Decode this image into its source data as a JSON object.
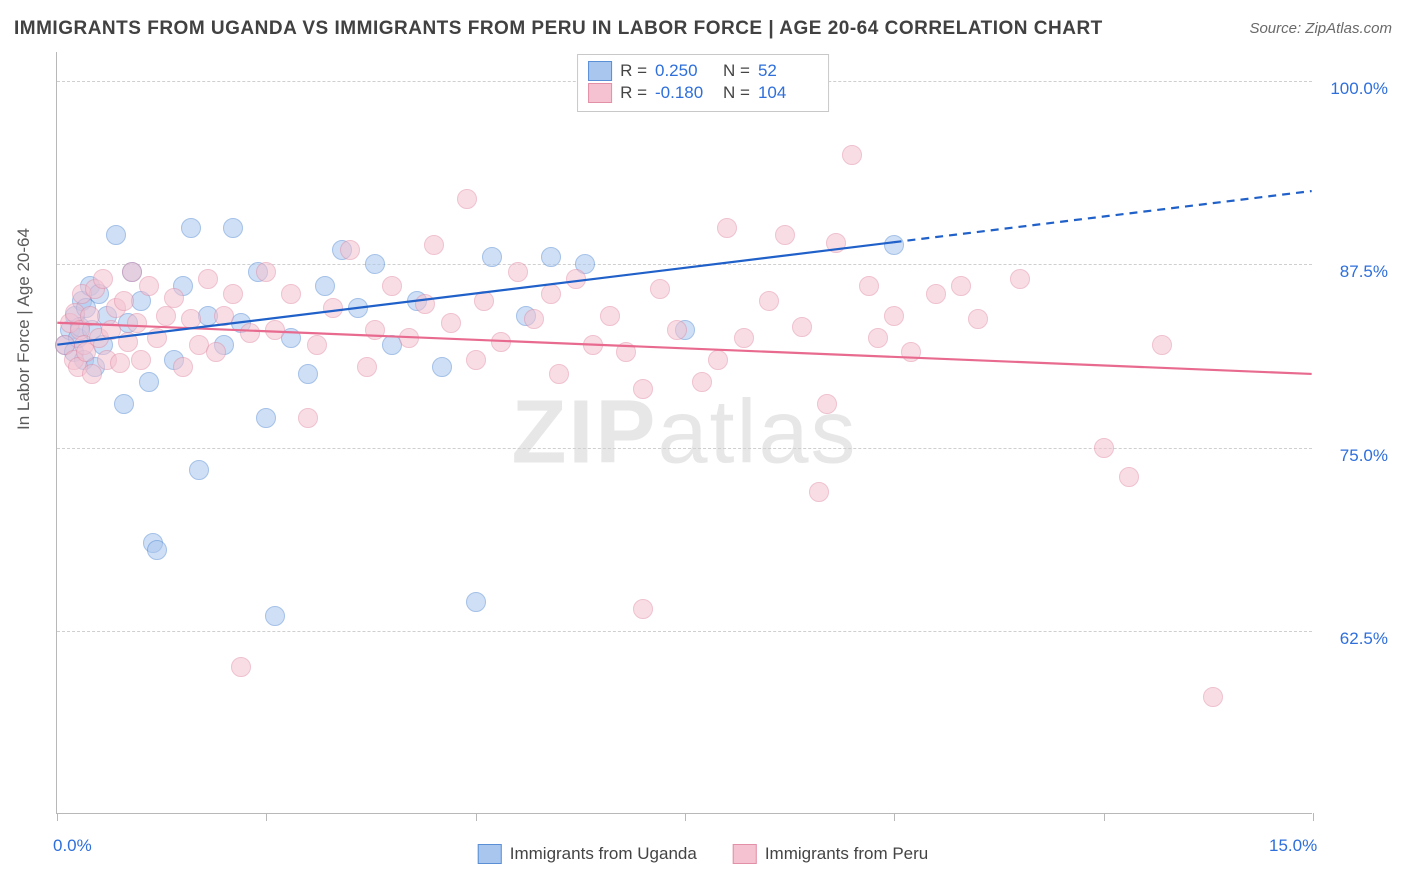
{
  "title": "IMMIGRANTS FROM UGANDA VS IMMIGRANTS FROM PERU IN LABOR FORCE | AGE 20-64 CORRELATION CHART",
  "source": "Source: ZipAtlas.com",
  "ylabel": "In Labor Force | Age 20-64",
  "watermark": "ZIPatlas",
  "chart": {
    "type": "scatter",
    "xlim": [
      0,
      15
    ],
    "ylim": [
      50,
      102
    ],
    "xticks": [
      0,
      2.5,
      5,
      7.5,
      10,
      12.5,
      15
    ],
    "xticks_labeled": {
      "0": "0.0%",
      "15": "15.0%"
    },
    "yticks": [
      62.5,
      75,
      87.5,
      100
    ],
    "ytick_labels": [
      "62.5%",
      "75.0%",
      "87.5%",
      "100.0%"
    ],
    "grid_color": "#cfcfcf",
    "axis_color": "#b8b8b8",
    "tick_label_color": "#2e6fdb",
    "background_color": "#ffffff"
  },
  "series": [
    {
      "name": "Immigrants from Uganda",
      "fill": "#a9c6ee",
      "stroke": "#5a8fd6",
      "fill_opacity": 0.55,
      "marker_size": 20,
      "R": "0.250",
      "N": "52",
      "trend": {
        "color": "#2060c9",
        "width": 2.2,
        "y_at_x0": 82,
        "y_at_x10": 89,
        "solid_end_x": 10,
        "dash_end_x": 15,
        "y_at_x15": 92.5
      },
      "points": [
        [
          0.1,
          82
        ],
        [
          0.15,
          83
        ],
        [
          0.2,
          81.5
        ],
        [
          0.22,
          84
        ],
        [
          0.25,
          82.5
        ],
        [
          0.28,
          83.2
        ],
        [
          0.3,
          85
        ],
        [
          0.32,
          81
        ],
        [
          0.35,
          84.5
        ],
        [
          0.4,
          86
        ],
        [
          0.42,
          83
        ],
        [
          0.45,
          80.5
        ],
        [
          0.5,
          85.5
        ],
        [
          0.55,
          82
        ],
        [
          0.6,
          84
        ],
        [
          0.7,
          89.5
        ],
        [
          0.8,
          78
        ],
        [
          0.85,
          83.5
        ],
        [
          0.9,
          87
        ],
        [
          1.0,
          85
        ],
        [
          1.1,
          79.5
        ],
        [
          1.15,
          68.5
        ],
        [
          1.2,
          68
        ],
        [
          1.4,
          81
        ],
        [
          1.5,
          86
        ],
        [
          1.6,
          90
        ],
        [
          1.7,
          73.5
        ],
        [
          1.8,
          84
        ],
        [
          2.0,
          82
        ],
        [
          2.1,
          90
        ],
        [
          2.2,
          83.5
        ],
        [
          2.4,
          87
        ],
        [
          2.5,
          77
        ],
        [
          2.6,
          63.5
        ],
        [
          2.8,
          82.5
        ],
        [
          3.0,
          80
        ],
        [
          3.2,
          86
        ],
        [
          3.4,
          88.5
        ],
        [
          3.6,
          84.5
        ],
        [
          3.8,
          87.5
        ],
        [
          4.0,
          82
        ],
        [
          4.3,
          85
        ],
        [
          4.6,
          80.5
        ],
        [
          5.0,
          64.5
        ],
        [
          5.2,
          88
        ],
        [
          5.6,
          84
        ],
        [
          5.9,
          88
        ],
        [
          6.3,
          87.5
        ],
        [
          7.5,
          83
        ],
        [
          10.0,
          88.8
        ]
      ]
    },
    {
      "name": "Immigrants from Peru",
      "fill": "#f4c2d0",
      "stroke": "#e290a8",
      "fill_opacity": 0.55,
      "marker_size": 20,
      "R": "-0.180",
      "N": "104",
      "trend": {
        "color": "#e86b8f",
        "width": 2.2,
        "y_at_x0": 83.5,
        "y_at_x15": 80,
        "solid_end_x": 15
      },
      "points": [
        [
          0.1,
          82
        ],
        [
          0.15,
          83.5
        ],
        [
          0.2,
          81
        ],
        [
          0.22,
          84.2
        ],
        [
          0.25,
          80.5
        ],
        [
          0.28,
          83
        ],
        [
          0.3,
          85.5
        ],
        [
          0.32,
          82
        ],
        [
          0.35,
          81.5
        ],
        [
          0.4,
          84
        ],
        [
          0.42,
          80
        ],
        [
          0.45,
          85.8
        ],
        [
          0.5,
          82.5
        ],
        [
          0.55,
          86.5
        ],
        [
          0.6,
          81
        ],
        [
          0.65,
          83
        ],
        [
          0.7,
          84.5
        ],
        [
          0.75,
          80.8
        ],
        [
          0.8,
          85
        ],
        [
          0.85,
          82.2
        ],
        [
          0.9,
          87
        ],
        [
          0.95,
          83.5
        ],
        [
          1.0,
          81
        ],
        [
          1.1,
          86
        ],
        [
          1.2,
          82.5
        ],
        [
          1.3,
          84
        ],
        [
          1.4,
          85.2
        ],
        [
          1.5,
          80.5
        ],
        [
          1.6,
          83.8
        ],
        [
          1.7,
          82
        ],
        [
          1.8,
          86.5
        ],
        [
          1.9,
          81.5
        ],
        [
          2.0,
          84
        ],
        [
          2.1,
          85.5
        ],
        [
          2.2,
          60
        ],
        [
          2.3,
          82.8
        ],
        [
          2.5,
          87
        ],
        [
          2.6,
          83
        ],
        [
          2.8,
          85.5
        ],
        [
          3.0,
          77
        ],
        [
          3.1,
          82
        ],
        [
          3.3,
          84.5
        ],
        [
          3.5,
          88.5
        ],
        [
          3.7,
          80.5
        ],
        [
          3.8,
          83
        ],
        [
          4.0,
          86
        ],
        [
          4.2,
          82.5
        ],
        [
          4.4,
          84.8
        ],
        [
          4.5,
          88.8
        ],
        [
          4.7,
          83.5
        ],
        [
          4.9,
          92
        ],
        [
          5.0,
          81
        ],
        [
          5.1,
          85
        ],
        [
          5.3,
          82.2
        ],
        [
          5.5,
          87
        ],
        [
          5.7,
          83.8
        ],
        [
          5.9,
          85.5
        ],
        [
          6.0,
          80
        ],
        [
          6.2,
          86.5
        ],
        [
          6.4,
          82
        ],
        [
          6.6,
          84
        ],
        [
          6.8,
          81.5
        ],
        [
          7.0,
          64
        ],
        [
          7.0,
          79
        ],
        [
          7.2,
          85.8
        ],
        [
          7.4,
          83
        ],
        [
          7.7,
          79.5
        ],
        [
          7.9,
          81
        ],
        [
          8.0,
          90
        ],
        [
          8.2,
          82.5
        ],
        [
          8.5,
          85
        ],
        [
          8.7,
          89.5
        ],
        [
          8.9,
          83.2
        ],
        [
          9.1,
          72
        ],
        [
          9.2,
          78
        ],
        [
          9.3,
          89
        ],
        [
          9.5,
          95
        ],
        [
          9.7,
          86
        ],
        [
          9.8,
          82.5
        ],
        [
          10.0,
          84
        ],
        [
          10.2,
          81.5
        ],
        [
          10.5,
          85.5
        ],
        [
          10.8,
          86
        ],
        [
          11.0,
          83.8
        ],
        [
          11.5,
          86.5
        ],
        [
          12.5,
          75
        ],
        [
          12.8,
          73
        ],
        [
          13.2,
          82
        ],
        [
          13.8,
          58
        ]
      ]
    }
  ],
  "legend_bottom": [
    {
      "label": "Immigrants from Uganda",
      "fill": "#a9c6ee",
      "stroke": "#5a8fd6"
    },
    {
      "label": "Immigrants from Peru",
      "fill": "#f4c2d0",
      "stroke": "#e290a8"
    }
  ]
}
